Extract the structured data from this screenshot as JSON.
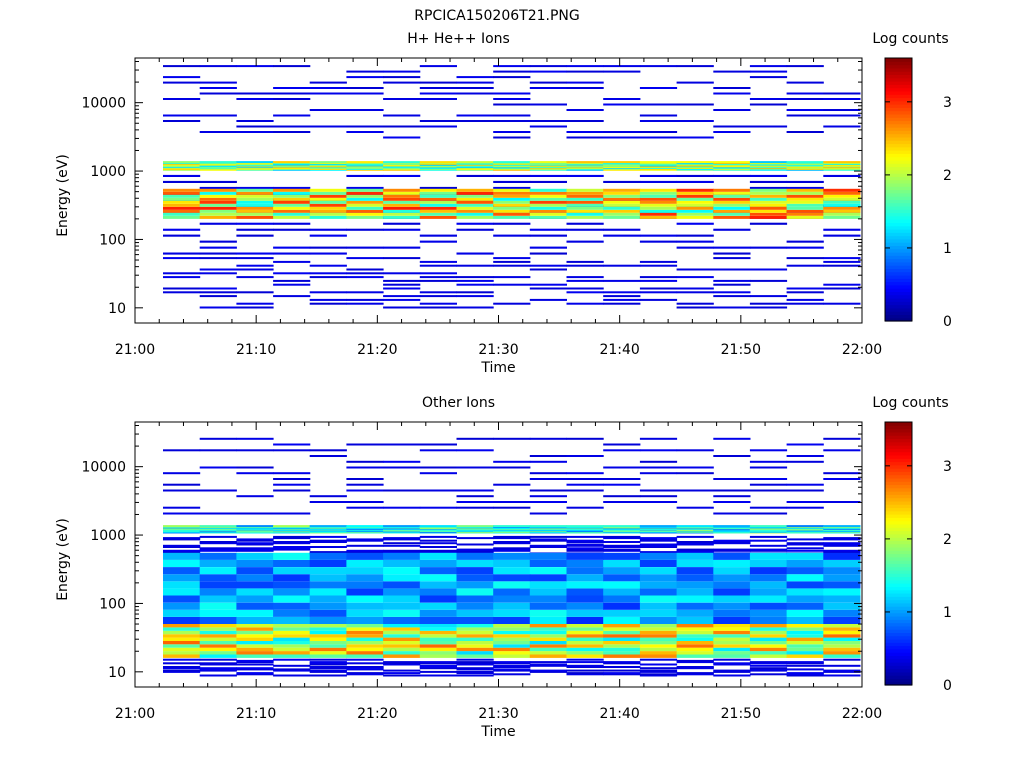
{
  "figure": {
    "title": "RPCICA150206T21.PNG"
  },
  "colorbar": {
    "label": "Log counts",
    "ticks": [
      "0",
      "1",
      "2",
      "3"
    ],
    "range": [
      0,
      3.6
    ],
    "colormap": [
      "#00007f",
      "#0000ff",
      "#007fff",
      "#00ffff",
      "#7fff7f",
      "#ffff00",
      "#ff7f00",
      "#ff0000",
      "#7f0000"
    ]
  },
  "chart_data": [
    {
      "type": "heatmap",
      "title": "H+ He++ Ions",
      "xlabel": "Time",
      "ylabel": "Energy (eV)",
      "x_ticks": [
        "21:00",
        "21:10",
        "21:20",
        "21:30",
        "21:40",
        "21:50",
        "22:00"
      ],
      "y_ticks": [
        "10",
        "100",
        "1000",
        "10000"
      ],
      "xlim_minutes": [
        0,
        60
      ],
      "ylim_eV": [
        6,
        45000
      ],
      "y_scale": "log",
      "time_bins": [
        "21:02",
        "21:05",
        "21:08",
        "21:11",
        "21:15",
        "21:18",
        "21:21",
        "21:24",
        "21:27",
        "21:30",
        "21:34",
        "21:37",
        "21:40",
        "21:43",
        "21:46",
        "21:49",
        "21:53",
        "21:56",
        "21:59"
      ],
      "energy_bands": [
        {
          "name": "background",
          "ranges": [
            [
              3000,
              40000
            ],
            [
              60,
              1000
            ],
            [
              10,
              60
            ]
          ],
          "level": 0.4,
          "sparse": true
        },
        {
          "name": "high-band",
          "ranges": [
            [
              1050,
              1400
            ]
          ],
          "level": 1.8
        },
        {
          "name": "low-band",
          "ranges": [
            [
              200,
              550
            ]
          ],
          "level": 2.2
        }
      ]
    },
    {
      "type": "heatmap",
      "title": "Other Ions",
      "xlabel": "Time",
      "ylabel": "Energy (eV)",
      "x_ticks": [
        "21:00",
        "21:10",
        "21:20",
        "21:30",
        "21:40",
        "21:50",
        "22:00"
      ],
      "y_ticks": [
        "10",
        "100",
        "1000",
        "10000"
      ],
      "xlim_minutes": [
        0,
        60
      ],
      "ylim_eV": [
        6,
        45000
      ],
      "y_scale": "log",
      "time_bins": [
        "21:02",
        "21:05",
        "21:08",
        "21:11",
        "21:15",
        "21:18",
        "21:21",
        "21:24",
        "21:27",
        "21:30",
        "21:34",
        "21:37",
        "21:40",
        "21:43",
        "21:46",
        "21:49",
        "21:53",
        "21:56",
        "21:59"
      ],
      "energy_bands": [
        {
          "name": "background",
          "ranges": [
            [
              2000,
              30000
            ],
            [
              550,
              1000
            ],
            [
              9,
              16
            ]
          ],
          "level": 0.4,
          "sparse": true
        },
        {
          "name": "high-band",
          "ranges": [
            [
              1100,
              1400
            ]
          ],
          "level": 1.4
        },
        {
          "name": "mid-band",
          "ranges": [
            [
              50,
              550
            ]
          ],
          "level": 1.0
        },
        {
          "name": "low-band",
          "ranges": [
            [
              16,
              50
            ]
          ],
          "level": 2.0
        }
      ]
    }
  ]
}
